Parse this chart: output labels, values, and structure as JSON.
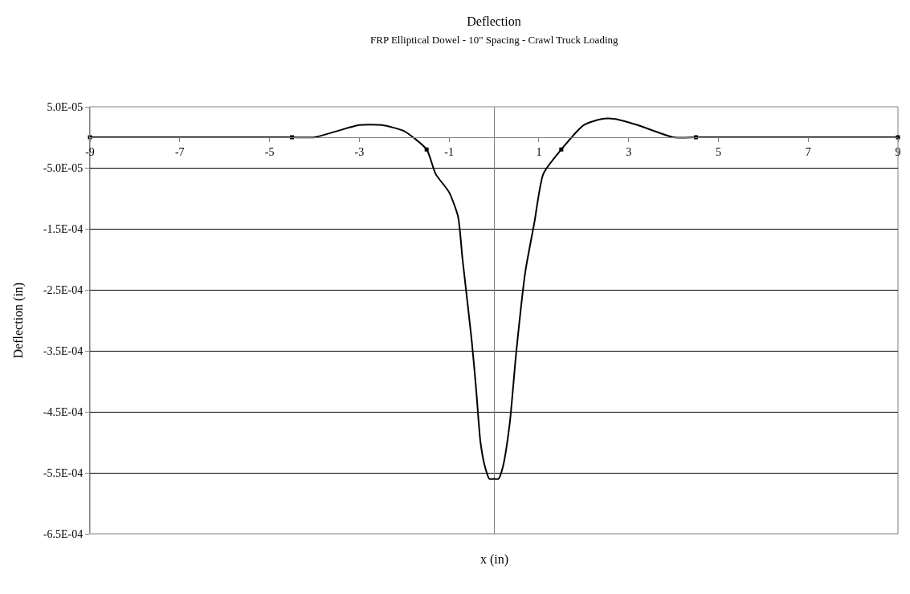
{
  "chart_data": {
    "type": "line",
    "title": "Deflection",
    "subtitle": "FRP Elliptical Dowel - 10\" Spacing - Crawl Truck Loading",
    "xlabel": "x (in)",
    "ylabel": "Deflection (in)",
    "xlim": [
      -9,
      9
    ],
    "xticks": [
      -9,
      -7,
      -5,
      -3,
      -1,
      1,
      3,
      5,
      7,
      9
    ],
    "ylim": [
      -0.00065,
      5e-05
    ],
    "yticks": [
      {
        "value": 5e-05,
        "label": "5.0E-05"
      },
      {
        "value": -5e-05,
        "label": "-5.0E-05"
      },
      {
        "value": -0.00015,
        "label": "-1.5E-04"
      },
      {
        "value": -0.00025,
        "label": "-2.5E-04"
      },
      {
        "value": -0.00035,
        "label": "-3.5E-04"
      },
      {
        "value": -0.00045,
        "label": "-4.5E-04"
      },
      {
        "value": -0.00055,
        "label": "-5.5E-04"
      },
      {
        "value": -0.00065,
        "label": "-6.5E-04"
      }
    ],
    "grid": "y",
    "line_style": "solid",
    "series": [
      {
        "type": "line",
        "color": "#000000",
        "marker": "none",
        "x": [
          -9,
          -5,
          -4.5,
          -4,
          -3.5,
          -3,
          -2.5,
          -2,
          -1.5,
          -1.3,
          -1,
          -0.8,
          -0.7,
          -0.5,
          -0.4,
          -0.3,
          -0.2,
          -0.1,
          0,
          0.1,
          0.2,
          0.35,
          0.5,
          0.7,
          0.9,
          1.1,
          1.5,
          2,
          2.4,
          2.7,
          3.2,
          4,
          4.5,
          5,
          5.5,
          9
        ],
        "values": [
          0,
          0,
          0,
          0,
          1e-05,
          2e-05,
          2e-05,
          1e-05,
          -2e-05,
          -6e-05,
          -9e-05,
          -0.00013,
          -0.0002,
          -0.00033,
          -0.00041,
          -0.0005,
          -0.00054,
          -0.00056,
          -0.00056,
          -0.00056,
          -0.00054,
          -0.00047,
          -0.00035,
          -0.00022,
          -0.00014,
          -6e-05,
          -2e-05,
          2e-05,
          3e-05,
          3e-05,
          2e-05,
          0,
          0,
          0,
          0,
          0
        ]
      },
      {
        "type": "scatter",
        "color": "#000000",
        "marker": "square",
        "x": [
          -9,
          -4.5,
          -1.5,
          1.5,
          4.5,
          9
        ],
        "values": [
          0,
          0,
          -2e-05,
          -2e-05,
          0,
          0
        ]
      }
    ]
  }
}
